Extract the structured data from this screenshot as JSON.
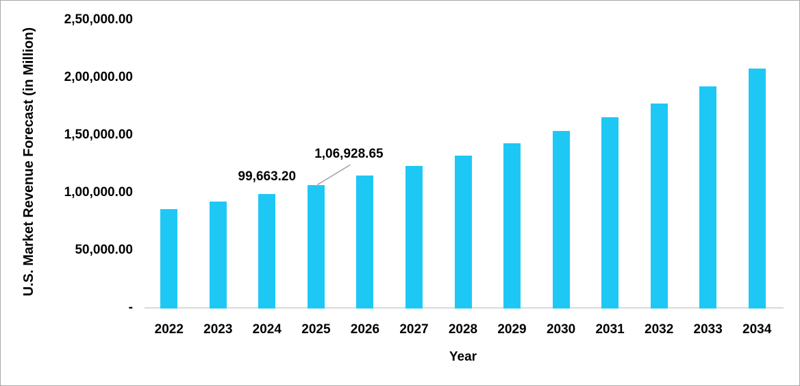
{
  "chart_data": {
    "type": "bar",
    "title": "",
    "xlabel": "Year",
    "ylabel": "U.S. Market Revenue Forecast (in Million)",
    "categories": [
      "2022",
      "2023",
      "2024",
      "2025",
      "2026",
      "2027",
      "2028",
      "2029",
      "2030",
      "2031",
      "2032",
      "2033",
      "2034"
    ],
    "values": [
      86300,
      93000,
      99663.2,
      106928.65,
      115500,
      123800,
      133000,
      143200,
      154300,
      166100,
      178200,
      193000,
      208600
    ],
    "ylim": [
      0,
      250000
    ],
    "ytick_interval": 50000,
    "ytick_labels": [
      "-",
      "50,000.00",
      "1,00,000.00",
      "1,50,000.00",
      "2,00,000.00",
      "2,50,000.00"
    ],
    "grid": false,
    "legend": "none",
    "bar_color": "#1ec8f5",
    "axis_line_color": "#d9d9d9",
    "leader_line_color": "#a6a6a6",
    "text_color": "#000000",
    "data_labels": [
      {
        "category": "2024",
        "text": "99,663.20",
        "leader_line": false
      },
      {
        "category": "2025",
        "text": "1,06,928.65",
        "leader_line": true
      }
    ]
  }
}
